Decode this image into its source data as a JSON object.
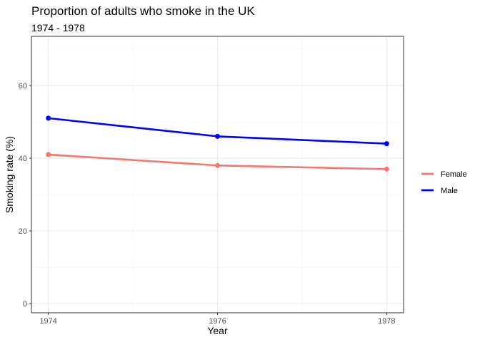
{
  "chart_data": {
    "type": "line",
    "title": "Proportion of adults who smoke in the UK",
    "subtitle": "1974 - 1978",
    "xlabel": "Year",
    "ylabel": "Smoking rate (%)",
    "x": [
      1974,
      1976,
      1978
    ],
    "x_ticks": [
      "1974",
      "1976",
      "1978"
    ],
    "xlim": [
      1973.8,
      1978.2
    ],
    "y_ticks": [
      0,
      20,
      40,
      60
    ],
    "ylim": [
      -2.5,
      73.5
    ],
    "grid": true,
    "legend_position": "right",
    "series": [
      {
        "name": "Female",
        "values": [
          41,
          38,
          37
        ],
        "color": "#F8766D"
      },
      {
        "name": "Male",
        "values": [
          51,
          46,
          44
        ],
        "color": "#0000FF"
      }
    ]
  }
}
